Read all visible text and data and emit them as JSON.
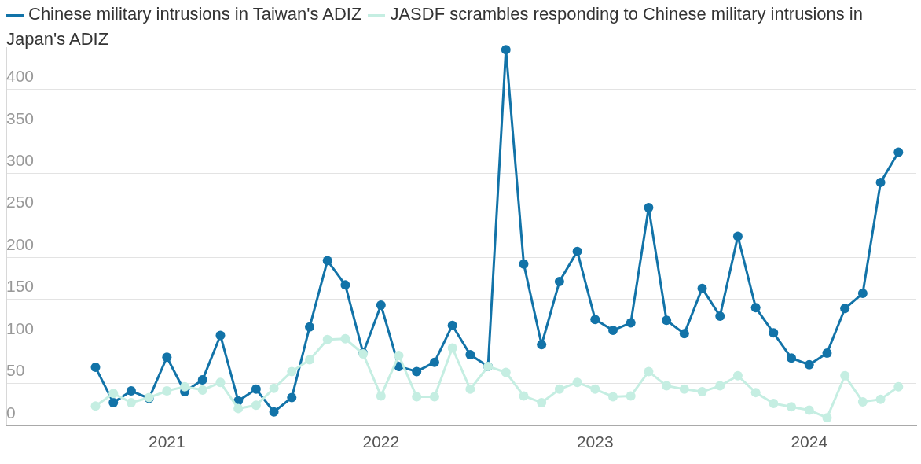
{
  "chart_data": {
    "type": "line",
    "x": [
      "2020-09",
      "2020-10",
      "2020-11",
      "2020-12",
      "2021-01",
      "2021-02",
      "2021-03",
      "2021-04",
      "2021-05",
      "2021-06",
      "2021-07",
      "2021-08",
      "2021-09",
      "2021-10",
      "2021-11",
      "2021-12",
      "2022-01",
      "2022-02",
      "2022-03",
      "2022-04",
      "2022-05",
      "2022-06",
      "2022-07",
      "2022-08",
      "2022-09",
      "2022-10",
      "2022-11",
      "2022-12",
      "2023-01",
      "2023-02",
      "2023-03",
      "2023-04",
      "2023-05",
      "2023-06",
      "2023-07",
      "2023-08",
      "2023-09",
      "2023-10",
      "2023-11",
      "2023-12",
      "2024-01",
      "2024-02",
      "2024-03",
      "2024-04",
      "2024-05",
      "2024-06"
    ],
    "series": [
      {
        "name": "JASDF scrambles responding to Chinese military intrusions in Japan's ADIZ",
        "color": "#c5eee2",
        "values": [
          23,
          38,
          27,
          33,
          41,
          46,
          42,
          51,
          20,
          24,
          44,
          64,
          78,
          102,
          103,
          85,
          35,
          83,
          34,
          34,
          92,
          43,
          70,
          63,
          35,
          27,
          43,
          51,
          43,
          34,
          35,
          64,
          47,
          43,
          40,
          47,
          59,
          39,
          26,
          22,
          18,
          9,
          59,
          28,
          31,
          46
        ]
      },
      {
        "name": "Chinese military intrusions in Taiwan's ADIZ",
        "color": "#1273a8",
        "values": [
          69,
          27,
          41,
          32,
          81,
          40,
          54,
          107,
          29,
          43,
          16,
          33,
          117,
          196,
          167,
          86,
          143,
          70,
          64,
          75,
          119,
          84,
          70,
          447,
          192,
          96,
          171,
          207,
          126,
          113,
          122,
          259,
          125,
          109,
          163,
          130,
          225,
          140,
          110,
          80,
          72,
          86,
          139,
          157,
          289,
          325
        ]
      }
    ],
    "xlim": [
      "2020-04",
      "2024-07"
    ],
    "xticks": [
      "2021",
      "2022",
      "2023",
      "2024"
    ],
    "ylim": [
      0,
      450
    ],
    "yticks": [
      0,
      50,
      100,
      150,
      200,
      250,
      300,
      350,
      400
    ],
    "grid": "y",
    "legend": "top left",
    "marker": "circle",
    "line_style": "solid"
  }
}
